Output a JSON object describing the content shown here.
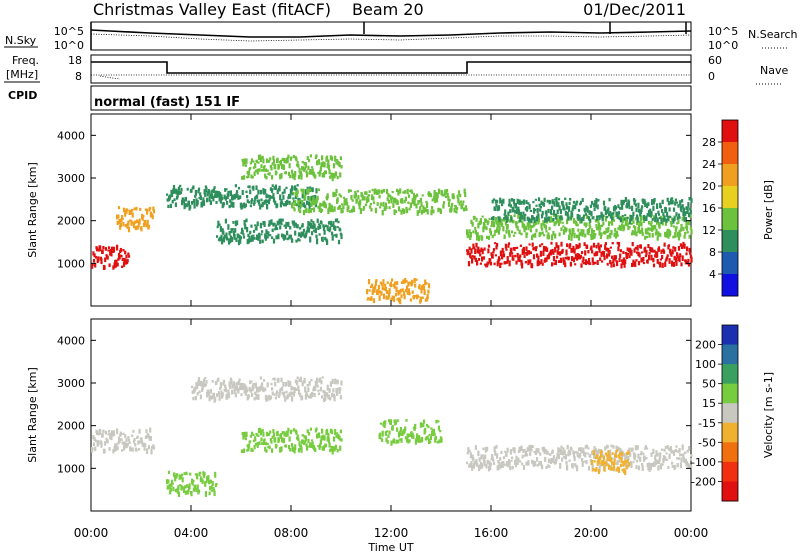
{
  "header": {
    "title": "Christmas Valley East (fitACF)",
    "beam": "Beam 20",
    "date": "01/Dec/2011",
    "mode": "normal (fast) 151 IF"
  },
  "strips": {
    "nsky_label": "N.Sky",
    "nsearch_label": "N.Search",
    "noise_top": "10^5",
    "noise_bottom": "10^0",
    "freq_label_1": "Freq.",
    "freq_label_2": "[MHz]",
    "freq_top": "18",
    "freq_bottom": "8",
    "nave_label": "Nave",
    "nave_top": "60",
    "nave_bottom": "0",
    "cpid_label": "CPID"
  },
  "chart_data": [
    {
      "type": "heatmap",
      "name": "power",
      "ylabel": "Slant Range [km]",
      "ylim": [
        0,
        4500
      ],
      "yticks": [
        "1000",
        "2000",
        "3000",
        "4000"
      ],
      "colorbar": {
        "label": "Power [dB]",
        "ticks": [
          "4",
          "8",
          "12",
          "16",
          "20",
          "24",
          "28"
        ],
        "colors": [
          "#1010e0",
          "#1e5ab0",
          "#2e8f5c",
          "#6cc23c",
          "#e8d020",
          "#f0a020",
          "#f06010",
          "#e01010"
        ]
      },
      "features": [
        {
          "start_hour": 0.0,
          "end_hour": 1.5,
          "range_km": 1200,
          "value": 28
        },
        {
          "start_hour": 1.0,
          "end_hour": 2.5,
          "range_km": 2100,
          "value": 20
        },
        {
          "start_hour": 3.0,
          "end_hour": 9.0,
          "range_km": 2600,
          "value": 8
        },
        {
          "start_hour": 6.0,
          "end_hour": 10.0,
          "range_km": 3300,
          "value": 12
        },
        {
          "start_hour": 8.0,
          "end_hour": 15.0,
          "range_km": 2500,
          "value": 12
        },
        {
          "start_hour": 5.0,
          "end_hour": 10.0,
          "range_km": 1800,
          "value": 8
        },
        {
          "start_hour": 11.0,
          "end_hour": 13.5,
          "range_km": 400,
          "value": 20
        },
        {
          "start_hour": 15.0,
          "end_hour": 24.0,
          "range_km": 1250,
          "value": 28
        },
        {
          "start_hour": 15.0,
          "end_hour": 24.0,
          "range_km": 1900,
          "value": 12
        },
        {
          "start_hour": 16.0,
          "end_hour": 24.0,
          "range_km": 2300,
          "value": 8
        }
      ]
    },
    {
      "type": "heatmap",
      "name": "velocity",
      "ylabel": "Slant Range [km]",
      "ylim": [
        0,
        4500
      ],
      "yticks": [
        "1000",
        "2000",
        "3000",
        "4000"
      ],
      "colorbar": {
        "label": "Velocity [m s-1]",
        "ticks": [
          "200",
          "100",
          "50",
          "15",
          "-15",
          "-50",
          "-100",
          "-200"
        ],
        "colors": [
          "#1c2fb0",
          "#2a70a0",
          "#3aa060",
          "#78cc40",
          "#c8c8c0",
          "#f0b030",
          "#f07010",
          "#f03010",
          "#e01010"
        ]
      },
      "features": [
        {
          "start_hour": 0.0,
          "end_hour": 2.5,
          "range_km": 1700,
          "value": 0
        },
        {
          "start_hour": 3.0,
          "end_hour": 5.0,
          "range_km": 700,
          "value": 50
        },
        {
          "start_hour": 4.0,
          "end_hour": 10.0,
          "range_km": 2900,
          "value": 0
        },
        {
          "start_hour": 6.0,
          "end_hour": 10.0,
          "range_km": 1700,
          "value": 50
        },
        {
          "start_hour": 11.5,
          "end_hour": 14.0,
          "range_km": 1900,
          "value": 50
        },
        {
          "start_hour": 15.0,
          "end_hour": 24.0,
          "range_km": 1300,
          "value": 0
        },
        {
          "start_hour": 20.0,
          "end_hour": 21.5,
          "range_km": 1200,
          "value": -60
        }
      ]
    }
  ],
  "x_axis": {
    "xlabel": "Time UT",
    "xlim_hours": [
      0,
      24
    ],
    "ticks": [
      "00:00",
      "04:00",
      "08:00",
      "12:00",
      "16:00",
      "20:00",
      "00:00"
    ]
  }
}
